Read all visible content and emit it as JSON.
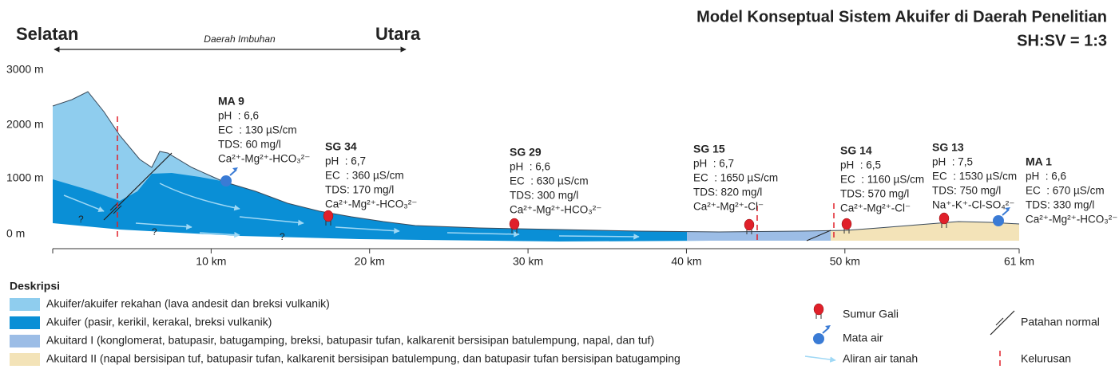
{
  "header": {
    "title": "Model Konseptual Sistem Akuifer di Daerah Penelitian",
    "scale": "SH:SV = 1:3"
  },
  "transect": {
    "left": "Selatan",
    "right": "Utara",
    "zone": "Daerah Imbuhan"
  },
  "y_axis": [
    "3000 m",
    "2000 m",
    "1000 m",
    "0 m"
  ],
  "x_axis": [
    "10 km",
    "20 km",
    "30 km",
    "40 km",
    "50 km",
    "61 km"
  ],
  "unknown_marks": [
    "?",
    "?",
    "?"
  ],
  "stations": [
    {
      "name": "MA 9",
      "lines": [
        "pH  : 6,6",
        "EC  : 130 µS/cm",
        "TDS: 60 mg/l",
        "Ca²⁺-Mg²⁺-HCO₃²⁻"
      ]
    },
    {
      "name": "SG 34",
      "lines": [
        "pH  : 6,7",
        "EC  : 360 µS/cm",
        "TDS: 170 mg/l",
        "Ca²⁺-Mg²⁺-HCO₃²⁻"
      ]
    },
    {
      "name": "SG 29",
      "lines": [
        "pH  : 6,6",
        "EC  : 630 µS/cm",
        "TDS: 300 mg/l",
        "Ca²⁺-Mg²⁺-HCO₃²⁻"
      ]
    },
    {
      "name": "SG 15",
      "lines": [
        "pH  : 6,7",
        "EC  : 1650 µS/cm",
        "TDS: 820 mg/l",
        "Ca²⁺-Mg²⁺-Cl⁻"
      ]
    },
    {
      "name": "SG 14",
      "lines": [
        "pH  : 6,5",
        "EC  : 1160 µS/cm",
        "TDS: 570 mg/l",
        "Ca²⁺-Mg²⁺-Cl⁻"
      ]
    },
    {
      "name": "SG 13",
      "lines": [
        "pH  : 7,5",
        "EC  : 1530 µS/cm",
        "TDS: 750 mg/l",
        "Na⁺-K⁺-Cl-SO₄²⁻"
      ]
    },
    {
      "name": "MA 1",
      "lines": [
        "pH  : 6,6",
        "EC  : 670 µS/cm",
        "TDS: 330 mg/l",
        "Ca²⁺-Mg²⁺-HCO₃²⁻"
      ]
    }
  ],
  "legend": {
    "title": "Deskripsi",
    "units": [
      "Akuifer/akuifer rekahan (lava andesit dan breksi vulkanik)",
      "Akuifer (pasir, kerikil, kerakal, breksi vulkanik)",
      "Akuitard I (konglomerat, batupasir, batugamping, breksi, batupasir tufan, kalkarenit bersisipan batulempung, napal, dan tuf)",
      "Akuitard II (napal bersisipan tuf, batupasir tufan, kalkarenit bersisipan batulempung, dan batupasir tufan bersisipan batugamping"
    ],
    "symbols": [
      "Sumur Gali",
      "Mata air",
      "Aliran air tanah",
      "Patahan normal",
      "Kelurusan"
    ]
  }
}
